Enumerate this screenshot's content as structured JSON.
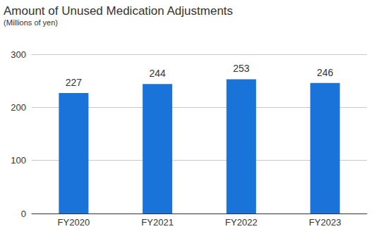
{
  "chart_data": {
    "type": "bar",
    "title": "Amount of Unused Medication Adjustments",
    "subtitle": "(Millions of yen)",
    "categories": [
      "FY2020",
      "FY2021",
      "FY2022",
      "FY2023"
    ],
    "values": [
      227,
      244,
      253,
      246
    ],
    "color": "#1a73d9",
    "ylim": [
      0,
      300
    ],
    "yticks": [
      0,
      100,
      200,
      300
    ],
    "grid": true,
    "data_labels": true
  }
}
